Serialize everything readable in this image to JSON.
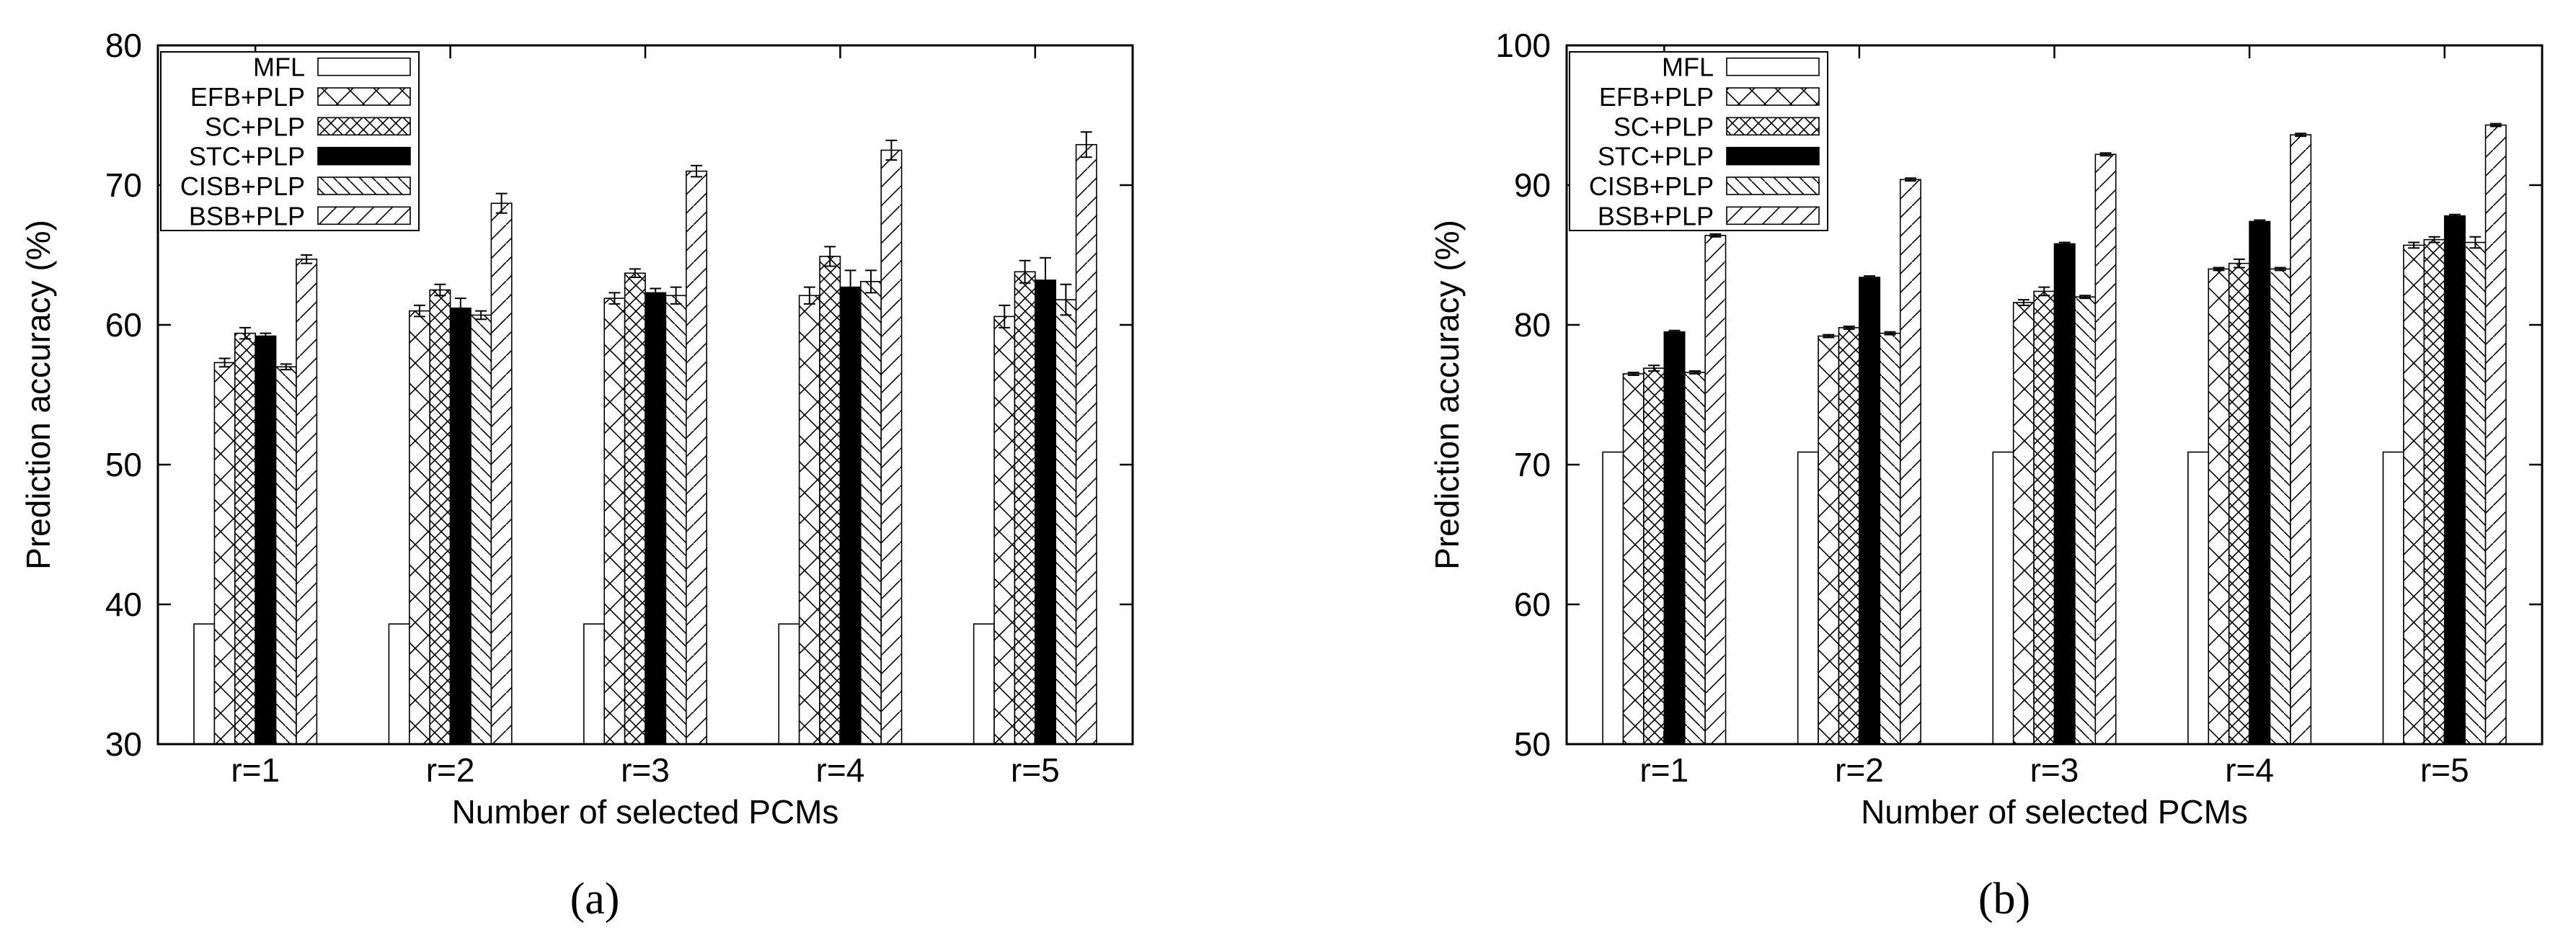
{
  "patterns": {
    "MFL": {
      "kind": "solid",
      "fill": "#ffffff"
    },
    "EFB+PLP": {
      "kind": "crosshatch",
      "spacing": 36
    },
    "SC+PLP": {
      "kind": "crosshatch",
      "spacing": 18
    },
    "STC+PLP": {
      "kind": "solid",
      "fill": "#000000"
    },
    "CISB+PLP": {
      "kind": "diagonal",
      "direction": "down",
      "spacing": 18
    },
    "BSB+PLP": {
      "kind": "diagonal",
      "direction": "up",
      "spacing": 26
    }
  },
  "chart_data": [
    {
      "type": "bar",
      "panel_label": "(a)",
      "xlabel": "Number of selected PCMs",
      "ylabel": "Prediction accuracy (%)",
      "ylim": [
        30,
        80
      ],
      "yticks": [
        "30",
        "40",
        "50",
        "60",
        "70",
        "80"
      ],
      "ytick_values": [
        30,
        40,
        50,
        60,
        70,
        80
      ],
      "categories": [
        "r=1",
        "r=2",
        "r=3",
        "r=4",
        "r=5"
      ],
      "legend_position": "top-left",
      "grid": false,
      "series": [
        {
          "name": "MFL",
          "values": [
            38.6,
            38.6,
            38.6,
            38.6,
            38.6
          ],
          "errors": [
            0,
            0,
            0,
            0,
            0
          ]
        },
        {
          "name": "EFB+PLP",
          "values": [
            57.3,
            61.0,
            61.9,
            62.1,
            60.6
          ],
          "errors": [
            0.3,
            0.4,
            0.4,
            0.6,
            0.8
          ]
        },
        {
          "name": "SC+PLP",
          "values": [
            59.4,
            62.5,
            63.7,
            64.9,
            63.8
          ],
          "errors": [
            0.4,
            0.4,
            0.3,
            0.7,
            0.8
          ]
        },
        {
          "name": "STC+PLP",
          "values": [
            59.2,
            61.2,
            62.3,
            62.7,
            63.2
          ],
          "errors": [
            0.2,
            0.7,
            0.3,
            1.2,
            1.6
          ]
        },
        {
          "name": "CISB+PLP",
          "values": [
            57.0,
            60.7,
            62.1,
            63.1,
            61.8
          ],
          "errors": [
            0.2,
            0.3,
            0.6,
            0.8,
            1.1
          ]
        },
        {
          "name": "BSB+PLP",
          "values": [
            64.7,
            68.7,
            71.0,
            72.5,
            72.9
          ],
          "errors": [
            0.3,
            0.7,
            0.4,
            0.7,
            0.9
          ]
        }
      ]
    },
    {
      "type": "bar",
      "panel_label": "(b)",
      "xlabel": "Number of selected PCMs",
      "ylabel": "Prediction accuracy (%)",
      "ylim": [
        50,
        100
      ],
      "yticks": [
        "50",
        "60",
        "70",
        "80",
        "90",
        "100"
      ],
      "ytick_values": [
        50,
        60,
        70,
        80,
        90,
        100
      ],
      "categories": [
        "r=1",
        "r=2",
        "r=3",
        "r=4",
        "r=5"
      ],
      "legend_position": "top-left",
      "grid": false,
      "series": [
        {
          "name": "MFL",
          "values": [
            70.9,
            70.9,
            70.9,
            70.9,
            70.9
          ],
          "errors": [
            0,
            0,
            0,
            0,
            0
          ]
        },
        {
          "name": "EFB+PLP",
          "values": [
            76.5,
            79.2,
            81.6,
            84.0,
            85.7
          ],
          "errors": [
            0.1,
            0.1,
            0.2,
            0.1,
            0.2
          ]
        },
        {
          "name": "SC+PLP",
          "values": [
            76.9,
            79.8,
            82.4,
            84.4,
            86.1
          ],
          "errors": [
            0.2,
            0.1,
            0.3,
            0.3,
            0.2
          ]
        },
        {
          "name": "STC+PLP",
          "values": [
            79.5,
            83.4,
            85.8,
            87.4,
            87.8
          ],
          "errors": [
            0.1,
            0.1,
            0.1,
            0.1,
            0.1
          ]
        },
        {
          "name": "CISB+PLP",
          "values": [
            76.6,
            79.4,
            82.0,
            84.0,
            85.9
          ],
          "errors": [
            0.1,
            0.1,
            0.1,
            0.1,
            0.4
          ]
        },
        {
          "name": "BSB+PLP",
          "values": [
            86.4,
            90.4,
            92.2,
            93.6,
            94.3
          ],
          "errors": [
            0.1,
            0.1,
            0.1,
            0.1,
            0.1
          ]
        }
      ]
    }
  ]
}
